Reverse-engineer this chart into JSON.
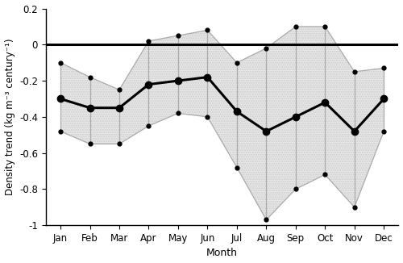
{
  "months": [
    "Jan",
    "Feb",
    "Mar",
    "Apr",
    "May",
    "Jun",
    "Jul",
    "Aug",
    "Sep",
    "Oct",
    "Nov",
    "Dec"
  ],
  "month_nums": [
    1,
    2,
    3,
    4,
    5,
    6,
    7,
    8,
    9,
    10,
    11,
    12
  ],
  "main": [
    -0.3,
    -0.35,
    -0.35,
    -0.22,
    -0.2,
    -0.18,
    -0.37,
    -0.48,
    -0.4,
    -0.32,
    -0.48,
    -0.3
  ],
  "upper": [
    -0.1,
    -0.18,
    -0.25,
    0.02,
    0.05,
    0.08,
    -0.1,
    -0.02,
    0.1,
    0.1,
    -0.15,
    -0.13
  ],
  "lower": [
    -0.48,
    -0.55,
    -0.55,
    -0.45,
    -0.38,
    -0.4,
    -0.68,
    -0.97,
    -0.8,
    -0.72,
    -0.9,
    -0.48
  ],
  "ylabel": "Density trend (kg m⁻³ century⁻¹)",
  "xlabel": "Month",
  "ylim": [
    -1.0,
    0.2
  ],
  "yticks": [
    -1.0,
    -0.8,
    -0.6,
    -0.4,
    -0.2,
    0.0,
    0.2
  ],
  "hline_y": 0.0,
  "main_color": "#000000",
  "bound_color": "#aaaaaa",
  "fill_color": "#e8e8e8",
  "background_color": "#ffffff",
  "main_linewidth": 2.2,
  "bound_linewidth": 0.9,
  "main_markersize": 6,
  "bound_markersize": 3.5
}
